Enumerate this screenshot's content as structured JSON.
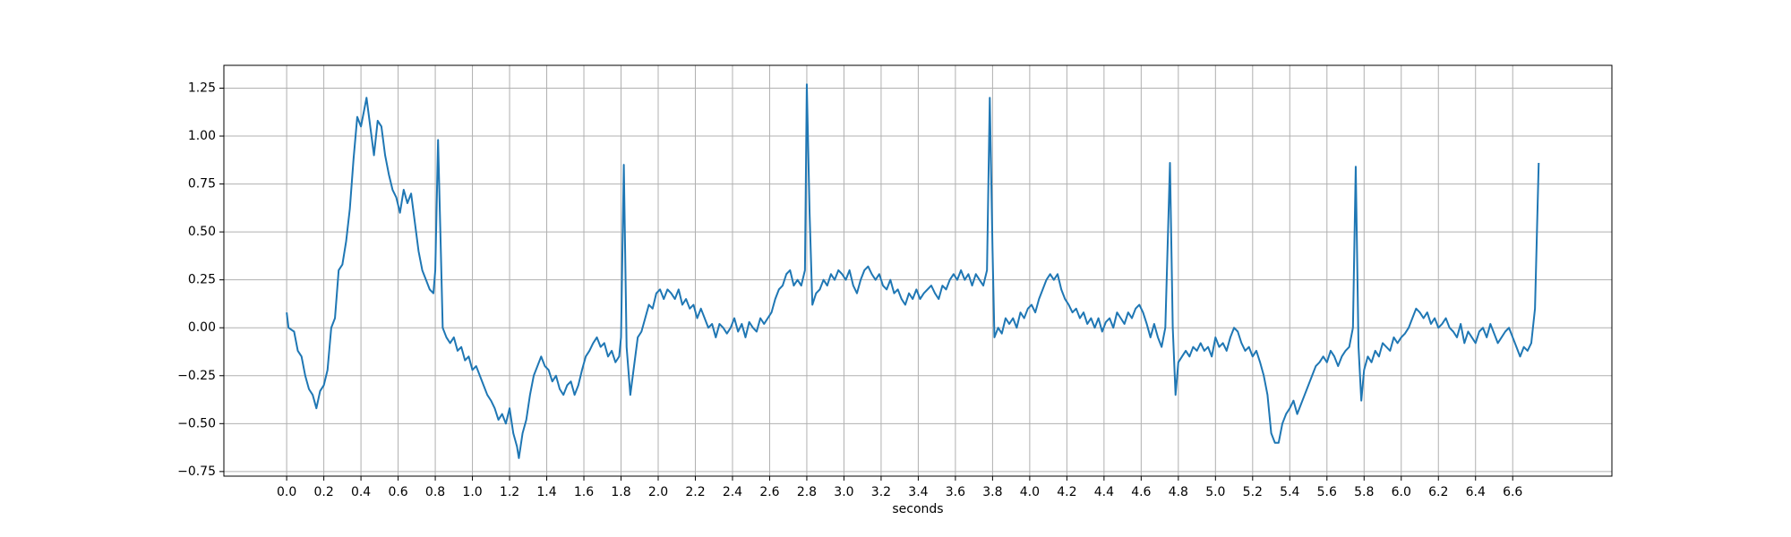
{
  "chart_data": {
    "type": "line",
    "xlabel": "seconds",
    "color": "#1f77b4",
    "grid": true,
    "xlim": [
      -0.338,
      7.134
    ],
    "ylim": [
      -0.774,
      1.369
    ],
    "xticks": [
      {
        "value": 0,
        "label": "0.0"
      },
      0.2,
      0.4,
      0.6,
      0.8,
      {
        "value": 1,
        "label": "1.0"
      },
      1.2,
      1.4,
      1.6,
      1.8,
      {
        "value": 2,
        "label": "2.0"
      },
      2.2,
      2.4,
      2.6,
      2.8,
      {
        "value": 3,
        "label": "3.0"
      },
      3.2,
      3.4,
      3.6,
      3.8,
      {
        "value": 4,
        "label": "4.0"
      },
      4.2,
      4.4,
      4.6,
      4.8,
      {
        "value": 5,
        "label": "5.0"
      },
      5.2,
      5.4,
      5.6,
      5.8,
      {
        "value": 6,
        "label": "6.0"
      },
      6.2,
      6.4,
      6.6
    ],
    "yticks": [
      {
        "value": -0.75,
        "label": "−0.75"
      },
      {
        "value": -0.5,
        "label": "−0.50"
      },
      {
        "value": -0.25,
        "label": "−0.25"
      },
      {
        "value": 0,
        "label": "0.00"
      },
      0.25,
      {
        "value": 0.5,
        "label": "0.50"
      },
      0.75,
      {
        "value": 1,
        "label": "1.00"
      },
      1.25
    ],
    "x": [
      0,
      0.01,
      0.04,
      0.06,
      0.08,
      0.1,
      0.12,
      0.14,
      0.16,
      0.18,
      0.2,
      0.22,
      0.24,
      0.26,
      0.28,
      0.3,
      0.32,
      0.34,
      0.36,
      0.38,
      0.4,
      0.42,
      0.43,
      0.45,
      0.47,
      0.49,
      0.51,
      0.53,
      0.55,
      0.57,
      0.59,
      0.61,
      0.63,
      0.65,
      0.67,
      0.69,
      0.71,
      0.73,
      0.75,
      0.77,
      0.79,
      0.8,
      0.815,
      0.83,
      0.84,
      0.86,
      0.88,
      0.9,
      0.92,
      0.94,
      0.96,
      0.98,
      1,
      1.02,
      1.04,
      1.06,
      1.08,
      1.1,
      1.12,
      1.14,
      1.16,
      1.18,
      1.2,
      1.22,
      1.24,
      1.25,
      1.27,
      1.29,
      1.31,
      1.33,
      1.35,
      1.37,
      1.39,
      1.41,
      1.43,
      1.45,
      1.47,
      1.49,
      1.51,
      1.53,
      1.55,
      1.57,
      1.59,
      1.61,
      1.63,
      1.65,
      1.67,
      1.69,
      1.71,
      1.73,
      1.75,
      1.77,
      1.79,
      1.8,
      1.815,
      1.83,
      1.85,
      1.87,
      1.89,
      1.91,
      1.93,
      1.95,
      1.97,
      1.99,
      2.01,
      2.03,
      2.05,
      2.07,
      2.09,
      2.11,
      2.13,
      2.15,
      2.17,
      2.19,
      2.21,
      2.23,
      2.25,
      2.27,
      2.29,
      2.31,
      2.33,
      2.35,
      2.37,
      2.39,
      2.41,
      2.43,
      2.45,
      2.47,
      2.49,
      2.51,
      2.53,
      2.55,
      2.57,
      2.59,
      2.61,
      2.63,
      2.65,
      2.67,
      2.69,
      2.71,
      2.73,
      2.75,
      2.77,
      2.79,
      2.8,
      2.815,
      2.83,
      2.85,
      2.87,
      2.89,
      2.91,
      2.93,
      2.95,
      2.97,
      2.99,
      3.01,
      3.03,
      3.05,
      3.07,
      3.09,
      3.11,
      3.13,
      3.15,
      3.17,
      3.19,
      3.21,
      3.23,
      3.25,
      3.27,
      3.29,
      3.31,
      3.33,
      3.35,
      3.37,
      3.39,
      3.41,
      3.43,
      3.45,
      3.47,
      3.49,
      3.51,
      3.53,
      3.55,
      3.57,
      3.59,
      3.61,
      3.63,
      3.65,
      3.67,
      3.69,
      3.71,
      3.73,
      3.75,
      3.77,
      3.785,
      3.8,
      3.81,
      3.83,
      3.85,
      3.87,
      3.89,
      3.91,
      3.93,
      3.95,
      3.97,
      3.99,
      4.01,
      4.03,
      4.05,
      4.07,
      4.09,
      4.11,
      4.13,
      4.15,
      4.17,
      4.19,
      4.21,
      4.23,
      4.25,
      4.27,
      4.29,
      4.31,
      4.33,
      4.35,
      4.37,
      4.39,
      4.41,
      4.43,
      4.45,
      4.47,
      4.49,
      4.51,
      4.53,
      4.55,
      4.57,
      4.59,
      4.61,
      4.63,
      4.65,
      4.67,
      4.69,
      4.71,
      4.73,
      4.755,
      4.77,
      4.785,
      4.8,
      4.82,
      4.84,
      4.86,
      4.88,
      4.9,
      4.92,
      4.94,
      4.96,
      4.98,
      5,
      5.02,
      5.04,
      5.06,
      5.08,
      5.1,
      5.12,
      5.14,
      5.16,
      5.18,
      5.2,
      5.22,
      5.24,
      5.26,
      5.28,
      5.3,
      5.32,
      5.34,
      5.36,
      5.38,
      5.4,
      5.42,
      5.44,
      5.46,
      5.48,
      5.5,
      5.52,
      5.54,
      5.56,
      5.58,
      5.6,
      5.62,
      5.64,
      5.66,
      5.68,
      5.7,
      5.72,
      5.74,
      5.755,
      5.77,
      5.785,
      5.8,
      5.82,
      5.84,
      5.86,
      5.88,
      5.9,
      5.92,
      5.94,
      5.96,
      5.98,
      6,
      6.02,
      6.04,
      6.06,
      6.08,
      6.1,
      6.12,
      6.14,
      6.16,
      6.18,
      6.2,
      6.22,
      6.24,
      6.26,
      6.28,
      6.3,
      6.32,
      6.34,
      6.36,
      6.38,
      6.4,
      6.42,
      6.44,
      6.46,
      6.48,
      6.5,
      6.52,
      6.54,
      6.56,
      6.58,
      6.6,
      6.62,
      6.64,
      6.66,
      6.68,
      6.7,
      6.72,
      6.74
    ],
    "values": [
      0.08,
      0,
      -0.02,
      -0.12,
      -0.15,
      -0.25,
      -0.32,
      -0.35,
      -0.42,
      -0.33,
      -0.3,
      -0.22,
      0,
      0.05,
      0.3,
      0.33,
      0.45,
      0.62,
      0.88,
      1.1,
      1.05,
      1.15,
      1.2,
      1.05,
      0.9,
      1.08,
      1.05,
      0.9,
      0.8,
      0.72,
      0.68,
      0.6,
      0.72,
      0.65,
      0.7,
      0.55,
      0.4,
      0.3,
      0.25,
      0.2,
      0.18,
      0.3,
      0.98,
      0.4,
      0,
      -0.05,
      -0.08,
      -0.05,
      -0.12,
      -0.1,
      -0.17,
      -0.15,
      -0.22,
      -0.2,
      -0.25,
      -0.3,
      -0.35,
      -0.38,
      -0.42,
      -0.48,
      -0.45,
      -0.5,
      -0.42,
      -0.55,
      -0.62,
      -0.68,
      -0.55,
      -0.48,
      -0.35,
      -0.25,
      -0.2,
      -0.15,
      -0.2,
      -0.22,
      -0.28,
      -0.25,
      -0.32,
      -0.35,
      -0.3,
      -0.28,
      -0.35,
      -0.3,
      -0.22,
      -0.15,
      -0.12,
      -0.08,
      -0.05,
      -0.1,
      -0.08,
      -0.15,
      -0.12,
      -0.18,
      -0.15,
      -0.05,
      0.85,
      -0.1,
      -0.35,
      -0.2,
      -0.05,
      -0.02,
      0.05,
      0.12,
      0.1,
      0.18,
      0.2,
      0.15,
      0.2,
      0.18,
      0.15,
      0.2,
      0.12,
      0.15,
      0.1,
      0.12,
      0.05,
      0.1,
      0.05,
      0,
      0.02,
      -0.05,
      0.02,
      0,
      -0.03,
      0,
      0.05,
      -0.02,
      0.02,
      -0.05,
      0.03,
      0,
      -0.02,
      0.05,
      0.02,
      0.05,
      0.08,
      0.15,
      0.2,
      0.22,
      0.28,
      0.3,
      0.22,
      0.25,
      0.22,
      0.3,
      1.27,
      0.6,
      0.12,
      0.18,
      0.2,
      0.25,
      0.22,
      0.28,
      0.25,
      0.3,
      0.28,
      0.25,
      0.3,
      0.22,
      0.18,
      0.25,
      0.3,
      0.32,
      0.28,
      0.25,
      0.28,
      0.22,
      0.2,
      0.25,
      0.18,
      0.2,
      0.15,
      0.12,
      0.18,
      0.15,
      0.2,
      0.15,
      0.18,
      0.2,
      0.22,
      0.18,
      0.15,
      0.22,
      0.2,
      0.25,
      0.28,
      0.25,
      0.3,
      0.25,
      0.28,
      0.22,
      0.28,
      0.25,
      0.22,
      0.3,
      1.2,
      0.4,
      -0.05,
      0,
      -0.03,
      0.05,
      0.02,
      0.05,
      0,
      0.08,
      0.05,
      0.1,
      0.12,
      0.08,
      0.15,
      0.2,
      0.25,
      0.28,
      0.25,
      0.28,
      0.2,
      0.15,
      0.12,
      0.08,
      0.1,
      0.05,
      0.08,
      0.02,
      0.05,
      0,
      0.05,
      -0.02,
      0.03,
      0.05,
      0,
      0.08,
      0.05,
      0.02,
      0.08,
      0.05,
      0.1,
      0.12,
      0.08,
      0.02,
      -0.05,
      0.02,
      -0.05,
      -0.1,
      0,
      0.86,
      0,
      -0.35,
      -0.18,
      -0.15,
      -0.12,
      -0.15,
      -0.1,
      -0.12,
      -0.08,
      -0.12,
      -0.1,
      -0.15,
      -0.05,
      -0.1,
      -0.08,
      -0.12,
      -0.05,
      0,
      -0.02,
      -0.08,
      -0.12,
      -0.1,
      -0.15,
      -0.12,
      -0.18,
      -0.25,
      -0.35,
      -0.55,
      -0.6,
      -0.6,
      -0.5,
      -0.45,
      -0.42,
      -0.38,
      -0.45,
      -0.4,
      -0.35,
      -0.3,
      -0.25,
      -0.2,
      -0.18,
      -0.15,
      -0.18,
      -0.12,
      -0.15,
      -0.2,
      -0.15,
      -0.12,
      -0.1,
      0,
      0.84,
      -0.1,
      -0.38,
      -0.22,
      -0.15,
      -0.18,
      -0.12,
      -0.15,
      -0.08,
      -0.1,
      -0.12,
      -0.05,
      -0.08,
      -0.05,
      -0.03,
      0,
      0.05,
      0.1,
      0.08,
      0.05,
      0.08,
      0.02,
      0.05,
      0,
      0.02,
      0.05,
      0,
      -0.02,
      -0.05,
      0.02,
      -0.08,
      -0.02,
      -0.05,
      -0.08,
      -0.02,
      0,
      -0.05,
      0.02,
      -0.03,
      -0.08,
      -0.05,
      -0.02,
      0,
      -0.05,
      -0.1,
      -0.15,
      -0.1,
      -0.12,
      -0.08,
      0.1,
      0.86
    ]
  }
}
